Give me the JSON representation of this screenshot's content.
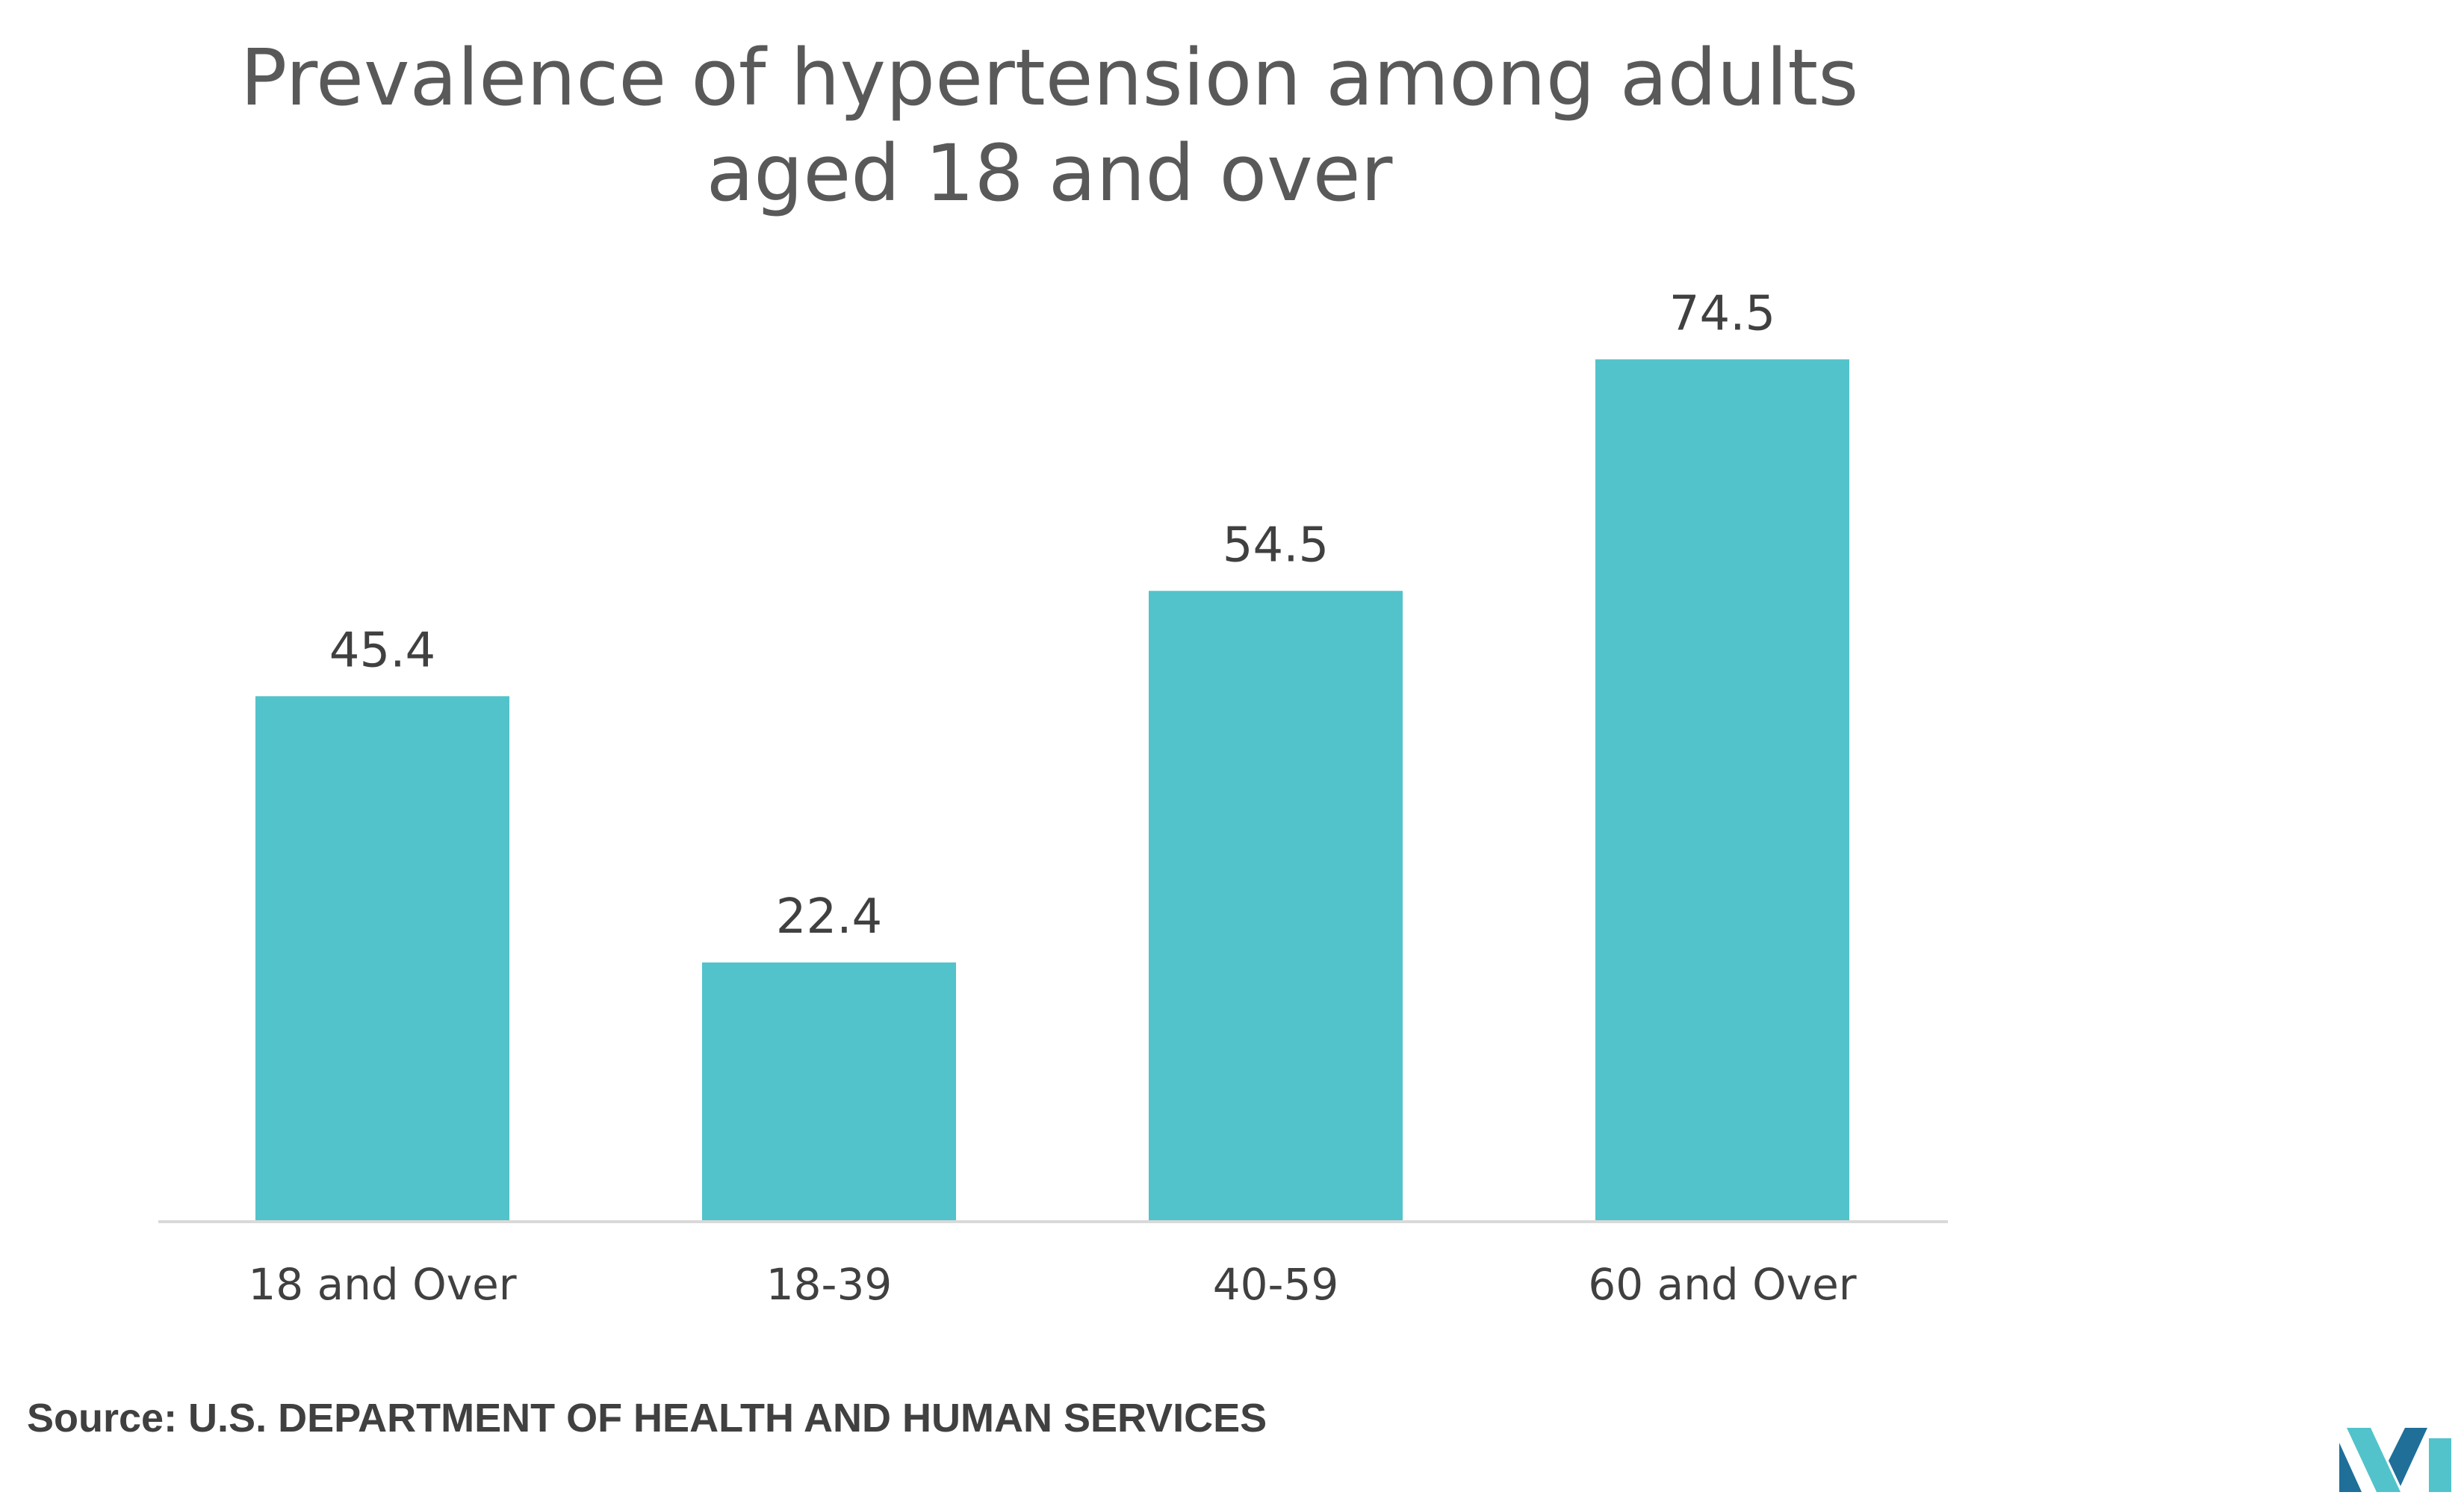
{
  "chart_data": {
    "type": "bar",
    "title_line1": "Prevalence of hypertension among adults",
    "title_line2": "aged 18 and over",
    "categories": [
      "18 and Over",
      "18-39",
      "40-59",
      "60 and Over"
    ],
    "values": [
      45.4,
      22.4,
      54.5,
      74.5
    ],
    "value_labels": [
      "45.4",
      "22.4",
      "54.5",
      "74.5"
    ],
    "bar_color": "#52C3CA",
    "ylim": [
      0,
      85
    ],
    "grid": false,
    "legend": "none"
  },
  "source": {
    "text": "Source:  U.S. DEPARTMENT OF HEALTH AND HUMAN SERVICES"
  },
  "colors": {
    "text": "#404040",
    "title": "#595959",
    "axis": "#D9D9D9",
    "logo_dark": "#1F6F99",
    "logo_light": "#52C3CA"
  }
}
